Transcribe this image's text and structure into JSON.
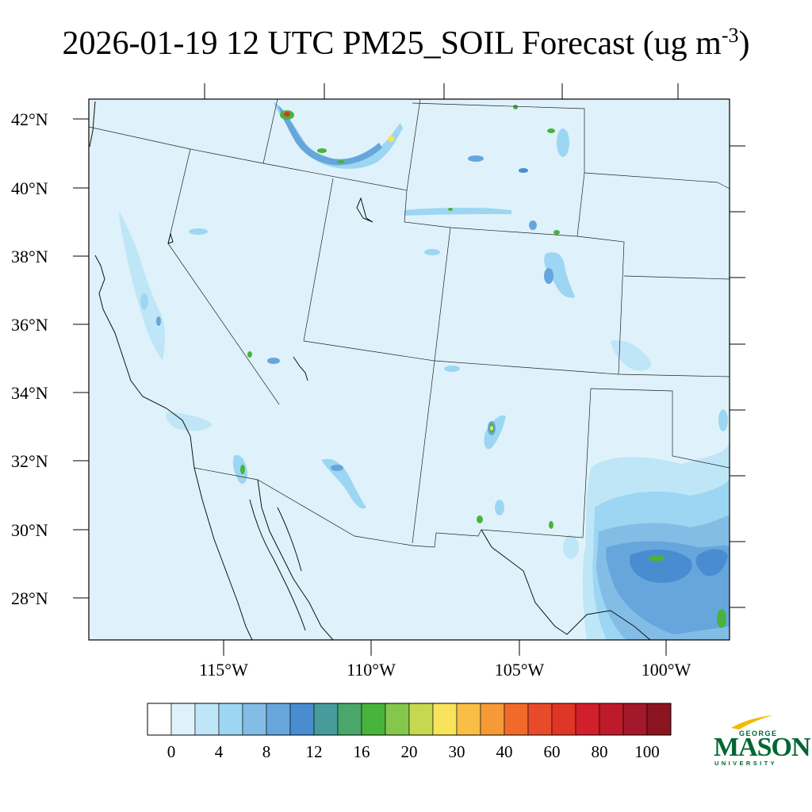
{
  "title": {
    "main": "2026-01-19 12 UTC PM25_SOIL Forecast (ug m",
    "exponent": "-3",
    "close": ")"
  },
  "map": {
    "latitude_labels": [
      "42°N",
      "40°N",
      "38°N",
      "36°N",
      "34°N",
      "32°N",
      "30°N",
      "28°N"
    ],
    "longitude_labels": [
      "115°W",
      "110°W",
      "105°W",
      "100°W"
    ],
    "background_color": "#dff2fb",
    "hotspot_colors": {
      "light": "#bfe6f7",
      "medium": "#9dd6f2",
      "blue": "#66a6dc",
      "dark_blue": "#4a8cd0",
      "green": "#48b43c",
      "yellow": "#f9e35c",
      "red": "#de3526"
    }
  },
  "colorbar": {
    "tick_labels": [
      "0",
      "4",
      "8",
      "12",
      "16",
      "20",
      "30",
      "40",
      "60",
      "80",
      "100"
    ],
    "colors": [
      "#ffffff",
      "#dff2fb",
      "#bfe6f7",
      "#9dd6f2",
      "#83bde5",
      "#66a6dc",
      "#4a8cd0",
      "#479b9b",
      "#4aa66b",
      "#48b43c",
      "#85c64d",
      "#c5d850",
      "#f9e35c",
      "#f8be45",
      "#f59a36",
      "#f26a2a",
      "#e84b2a",
      "#de3526",
      "#d11f2b",
      "#bd1b29",
      "#a3182a",
      "#8b1420"
    ]
  },
  "logo": {
    "line1": "GEORGE",
    "line2": "MASON",
    "line3": "UNIVERSITY",
    "color": "#006633",
    "accent_color": "#f2b900"
  }
}
